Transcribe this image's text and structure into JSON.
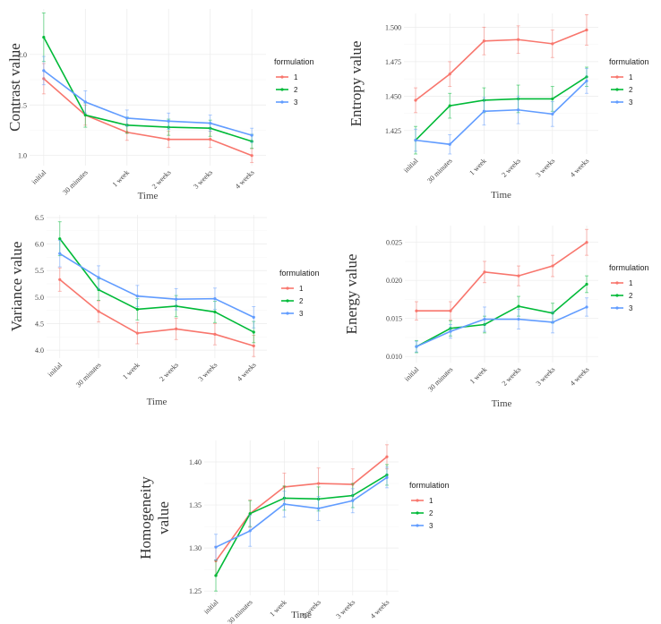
{
  "colors": {
    "1": "#F8766D",
    "2": "#00BA38",
    "3": "#619CFF",
    "grid": "#ebebeb",
    "axis_text": "#444444"
  },
  "chart_data": [
    {
      "type": "line",
      "categories": [
        "initial",
        "30 minutes",
        "1 week",
        "2 weeks",
        "3 weeks",
        "4 weeks"
      ],
      "xlabel": "Time",
      "ylabel": "Contrast value",
      "ylabel_lines": [
        "Contrast value"
      ],
      "ylim": [
        0.9,
        2.45
      ],
      "yticks": [
        1.0,
        1.5,
        2.0
      ],
      "ytick_labels": [
        "1.0",
        "1.5",
        "2.0"
      ],
      "legend_title": "formulation",
      "legend_position": "right",
      "grid": true,
      "series": [
        {
          "name": "1",
          "values": [
            1.76,
            1.4,
            1.23,
            1.16,
            1.16,
            1.0
          ],
          "errors": [
            0.15,
            0.1,
            0.08,
            0.08,
            0.08,
            0.07
          ]
        },
        {
          "name": "2",
          "values": [
            2.17,
            1.4,
            1.3,
            1.28,
            1.27,
            1.14
          ],
          "errors": [
            0.24,
            0.12,
            0.08,
            0.08,
            0.08,
            0.07
          ]
        },
        {
          "name": "3",
          "values": [
            1.84,
            1.53,
            1.37,
            1.34,
            1.32,
            1.2
          ],
          "errors": [
            0.14,
            0.11,
            0.08,
            0.08,
            0.08,
            0.07
          ]
        }
      ]
    },
    {
      "type": "line",
      "categories": [
        "initial",
        "30 minutes",
        "1 week",
        "2 weeks",
        "3 weeks",
        "4 weeks"
      ],
      "xlabel": "Time",
      "ylabel": "Entropy value",
      "ylabel_lines": [
        "Entropy value"
      ],
      "ylim": [
        1.408,
        1.51
      ],
      "yticks": [
        1.425,
        1.45,
        1.475,
        1.5
      ],
      "ytick_labels": [
        "1.425",
        "1.450",
        "1.475",
        "1.500"
      ],
      "legend_title": "formulation",
      "legend_position": "right",
      "grid": true,
      "series": [
        {
          "name": "1",
          "values": [
            1.447,
            1.466,
            1.49,
            1.491,
            1.488,
            1.498
          ],
          "errors": [
            0.009,
            0.009,
            0.01,
            0.01,
            0.01,
            0.011
          ]
        },
        {
          "name": "2",
          "values": [
            1.418,
            1.443,
            1.447,
            1.448,
            1.448,
            1.464
          ],
          "errors": [
            0.01,
            0.009,
            0.009,
            0.01,
            0.009,
            0.007
          ]
        },
        {
          "name": "3",
          "values": [
            1.418,
            1.415,
            1.439,
            1.44,
            1.437,
            1.461
          ],
          "errors": [
            0.008,
            0.007,
            0.01,
            0.01,
            0.009,
            0.009
          ]
        }
      ]
    },
    {
      "type": "line",
      "categories": [
        "initial",
        "30 minutes",
        "1 week",
        "2 weeks",
        "3 weeks",
        "4 weeks"
      ],
      "xlabel": "Time",
      "ylabel": "Variance value",
      "ylabel_lines": [
        "Variance value"
      ],
      "ylim": [
        3.85,
        6.55
      ],
      "yticks": [
        4.0,
        4.5,
        5.0,
        5.5,
        6.0,
        6.5
      ],
      "ytick_labels": [
        "4.0",
        "4.5",
        "5.0",
        "5.5",
        "6.0",
        "6.5"
      ],
      "legend_title": "formulation",
      "legend_position": "right",
      "grid": true,
      "series": [
        {
          "name": "1",
          "values": [
            5.33,
            4.73,
            4.32,
            4.4,
            4.3,
            4.08
          ],
          "errors": [
            0.22,
            0.2,
            0.2,
            0.2,
            0.2,
            0.2
          ]
        },
        {
          "name": "2",
          "values": [
            6.1,
            5.14,
            4.77,
            4.83,
            4.72,
            4.34
          ],
          "errors": [
            0.32,
            0.2,
            0.2,
            0.2,
            0.2,
            0.2
          ]
        },
        {
          "name": "3",
          "values": [
            5.82,
            5.37,
            5.02,
            4.96,
            4.97,
            4.62
          ],
          "errors": [
            0.25,
            0.22,
            0.2,
            0.2,
            0.2,
            0.2
          ]
        }
      ]
    },
    {
      "type": "line",
      "categories": [
        "initial",
        "30 minutes",
        "1 week",
        "2 weeks",
        "3 weeks",
        "4 weeks"
      ],
      "xlabel": "Time",
      "ylabel": "Energy value",
      "ylabel_lines": [
        "Energy value"
      ],
      "ylim": [
        0.0092,
        0.0272
      ],
      "yticks": [
        0.01,
        0.015,
        0.02,
        0.025
      ],
      "ytick_labels": [
        "0.010",
        "0.015",
        "0.020",
        "0.025"
      ],
      "legend_title": "formulation",
      "legend_position": "right",
      "grid": true,
      "series": [
        {
          "name": "1",
          "values": [
            0.016,
            0.016,
            0.0211,
            0.0206,
            0.0219,
            0.025
          ],
          "errors": [
            0.0012,
            0.0012,
            0.0014,
            0.0013,
            0.0014,
            0.0017
          ]
        },
        {
          "name": "2",
          "values": [
            0.0113,
            0.0137,
            0.0142,
            0.0166,
            0.0157,
            0.0195
          ],
          "errors": [
            0.0008,
            0.001,
            0.0011,
            0.0013,
            0.0013,
            0.0011
          ]
        },
        {
          "name": "3",
          "values": [
            0.0113,
            0.0133,
            0.0149,
            0.0149,
            0.0145,
            0.0165
          ],
          "errors": [
            0.0007,
            0.0009,
            0.0016,
            0.0013,
            0.0014,
            0.0012
          ]
        }
      ]
    },
    {
      "type": "line",
      "categories": [
        "initial",
        "30 minutes",
        "1 week",
        "2 weeks",
        "3 weeks",
        "4 weeks"
      ],
      "xlabel": "Time",
      "ylabel": "Homogeneity value",
      "ylabel_lines": [
        "Homogeneity",
        "value"
      ],
      "ylim": [
        1.245,
        1.425
      ],
      "yticks": [
        1.25,
        1.3,
        1.35,
        1.4
      ],
      "ytick_labels": [
        "1.25",
        "1.30",
        "1.35",
        "1.40"
      ],
      "legend_title": "formulation",
      "legend_position": "right",
      "grid": true,
      "series": [
        {
          "name": "1",
          "values": [
            1.285,
            1.34,
            1.371,
            1.375,
            1.374,
            1.406
          ],
          "errors": [
            0.017,
            0.016,
            0.016,
            0.018,
            0.018,
            0.014
          ]
        },
        {
          "name": "2",
          "values": [
            1.268,
            1.34,
            1.358,
            1.357,
            1.361,
            1.385
          ],
          "errors": [
            0.018,
            0.015,
            0.014,
            0.014,
            0.014,
            0.012
          ]
        },
        {
          "name": "3",
          "values": [
            1.301,
            1.32,
            1.351,
            1.346,
            1.355,
            1.382
          ],
          "errors": [
            0.015,
            0.018,
            0.015,
            0.014,
            0.014,
            0.012
          ]
        }
      ]
    }
  ]
}
